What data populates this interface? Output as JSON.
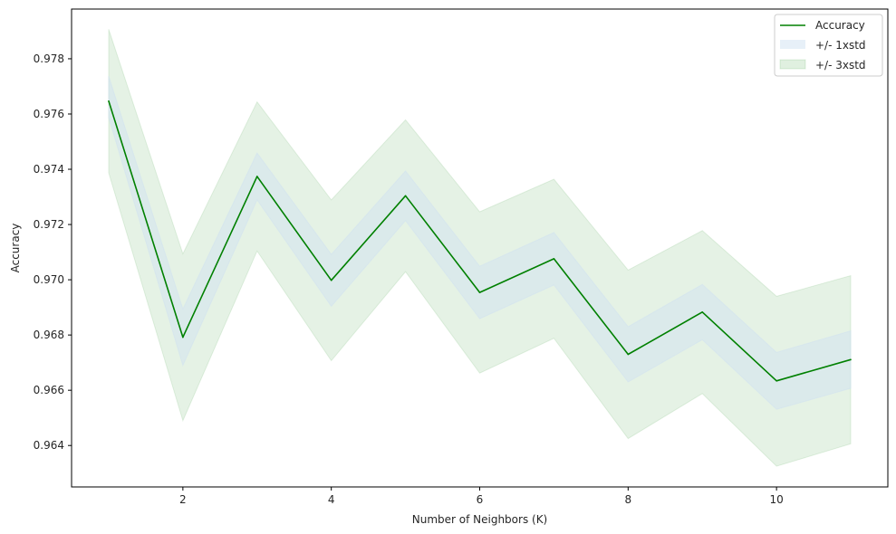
{
  "chart_data": {
    "type": "line",
    "title": "",
    "xlabel": "Number of Neighbors (K)",
    "ylabel": "Accuracy",
    "xlim": [
      0.5,
      11.5
    ],
    "ylim": [
      0.9625,
      0.9798
    ],
    "xticks": [
      2,
      4,
      6,
      8,
      10
    ],
    "yticks": [
      0.964,
      0.966,
      0.968,
      0.97,
      0.972,
      0.974,
      0.976,
      0.978
    ],
    "grid": false,
    "legend_position": "top-right",
    "x": [
      1,
      2,
      3,
      4,
      5,
      6,
      7,
      8,
      9,
      10,
      11
    ],
    "series": [
      {
        "name": "Accuracy",
        "color": "#008000",
        "values": [
          0.97647,
          0.96792,
          0.97374,
          0.96998,
          0.97304,
          0.96954,
          0.97076,
          0.9673,
          0.96883,
          0.96634,
          0.96711
        ]
      }
    ],
    "bands": [
      {
        "name": "+/- 1xstd",
        "color": "#cfe1f2",
        "opacity": 0.45,
        "lower": [
          0.97587,
          0.9669,
          0.97289,
          0.96904,
          0.97214,
          0.96859,
          0.96981,
          0.9663,
          0.96783,
          0.96531,
          0.96607
        ],
        "upper": [
          0.97737,
          0.96894,
          0.97459,
          0.97092,
          0.97394,
          0.97049,
          0.97171,
          0.9683,
          0.96983,
          0.96737,
          0.96815
        ]
      },
      {
        "name": "+/- 3xstd",
        "color": "#008000",
        "opacity": 0.1,
        "lower": [
          0.97387,
          0.9649,
          0.97104,
          0.96707,
          0.97029,
          0.96662,
          0.96788,
          0.96425,
          0.96588,
          0.96325,
          0.96406
        ],
        "upper": [
          0.97907,
          0.97094,
          0.97644,
          0.97289,
          0.97579,
          0.97246,
          0.97364,
          0.97035,
          0.97178,
          0.9694,
          0.97015
        ]
      }
    ]
  }
}
